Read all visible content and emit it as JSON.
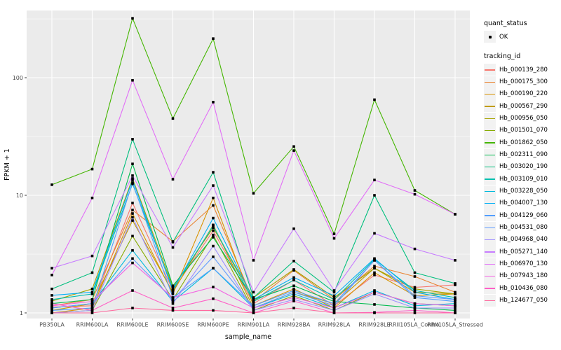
{
  "chart_data": {
    "type": "line",
    "title": "",
    "xlabel": "sample_name",
    "ylabel": "FPKM + 1",
    "y_scale": "log10",
    "y_major_ticks": [
      1,
      10,
      100
    ],
    "y_minor_gridlines": [
      3.16,
      31.6,
      316
    ],
    "ylim": [
      0.9,
      380
    ],
    "grid": true,
    "legend_position": "right",
    "point_shape": "small-black-square",
    "categories": [
      "PB350LA",
      "RRIM600LA",
      "RRIM600LE",
      "RRIM600SE",
      "RRIM600PE",
      "RRIM901LA",
      "RRIM928BA",
      "RRIM928LA",
      "RRIM928LE",
      "RRII105LA_Control",
      "RRII105LA_Stressed"
    ],
    "series": [
      {
        "name": "Hb_000139_280",
        "color": "#F8766D",
        "values": [
          1.12,
          1.15,
          8.6,
          1.55,
          5.0,
          1.2,
          1.9,
          1.15,
          2.1,
          1.65,
          1.73
        ]
      },
      {
        "name": "Hb_000175_300",
        "color": "#EA8331",
        "values": [
          1.15,
          1.3,
          7.5,
          4.05,
          8.2,
          1.25,
          2.3,
          1.3,
          2.5,
          2.04,
          1.5
        ]
      },
      {
        "name": "Hb_000190_220",
        "color": "#D89200",
        "values": [
          1.0,
          1.1,
          7.0,
          1.45,
          9.5,
          1.15,
          1.6,
          1.1,
          2.2,
          1.4,
          1.45
        ]
      },
      {
        "name": "Hb_000567_290",
        "color": "#C19C00",
        "values": [
          1.05,
          1.2,
          6.1,
          1.5,
          5.6,
          1.1,
          1.5,
          1.2,
          2.4,
          1.5,
          1.45
        ]
      },
      {
        "name": "Hb_000956_050",
        "color": "#A6A400",
        "values": [
          1.26,
          1.6,
          13.9,
          1.66,
          5.3,
          1.35,
          2.34,
          1.35,
          2.4,
          1.6,
          1.45
        ]
      },
      {
        "name": "Hb_001501_070",
        "color": "#86AB00",
        "values": [
          1.0,
          1.05,
          4.5,
          1.3,
          4.6,
          1.05,
          1.4,
          1.05,
          1.5,
          1.2,
          1.15
        ]
      },
      {
        "name": "Hb_001862_050",
        "color": "#44B600",
        "values": [
          12.3,
          16.7,
          320,
          45,
          215,
          10.4,
          26,
          4.7,
          65,
          11,
          6.9
        ]
      },
      {
        "name": "Hb_002311_090",
        "color": "#00BB4E",
        "values": [
          1.2,
          1.3,
          18.5,
          1.7,
          4.4,
          1.3,
          1.7,
          1.25,
          1.18,
          1.1,
          1.05
        ]
      },
      {
        "name": "Hb_003020_190",
        "color": "#00BF7D",
        "values": [
          1.6,
          2.2,
          30,
          4.0,
          15.7,
          1.35,
          2.76,
          1.5,
          10,
          2.2,
          1.78
        ]
      },
      {
        "name": "Hb_003109_010",
        "color": "#00C0AF",
        "values": [
          1.3,
          1.45,
          12.5,
          1.6,
          5.5,
          1.25,
          1.9,
          1.3,
          2.85,
          1.55,
          1.35
        ]
      },
      {
        "name": "Hb_003228_050",
        "color": "#00BADE",
        "values": [
          1.1,
          1.2,
          3.4,
          1.25,
          2.4,
          1.1,
          1.45,
          1.1,
          1.55,
          1.15,
          1.2
        ]
      },
      {
        "name": "Hb_004007_130",
        "color": "#00AFF6",
        "values": [
          1.41,
          1.5,
          13.5,
          1.55,
          6.4,
          1.3,
          2.0,
          1.4,
          2.9,
          1.5,
          1.3
        ]
      },
      {
        "name": "Hb_004129_060",
        "color": "#529EFF",
        "values": [
          1.05,
          1.1,
          12.8,
          1.35,
          2.4,
          1.15,
          1.55,
          1.2,
          2.8,
          1.35,
          1.25
        ]
      },
      {
        "name": "Hb_004531_080",
        "color": "#619CFF",
        "values": [
          1.1,
          1.2,
          2.9,
          1.3,
          3.0,
          1.1,
          1.5,
          1.15,
          2.8,
          1.4,
          1.3
        ]
      },
      {
        "name": "Hb_004968_040",
        "color": "#9C8DFF",
        "values": [
          1.0,
          1.05,
          6.5,
          1.2,
          3.7,
          1.05,
          1.3,
          1.05,
          1.45,
          1.1,
          1.1
        ]
      },
      {
        "name": "Hb_005271_140",
        "color": "#C77CFF",
        "values": [
          2.4,
          3.05,
          14.7,
          3.6,
          12.1,
          1.5,
          5.2,
          1.55,
          4.75,
          3.5,
          2.8
        ]
      },
      {
        "name": "Hb_006970_130",
        "color": "#E26EF7",
        "values": [
          2.1,
          9.5,
          95,
          13.7,
          62,
          2.8,
          24,
          4.3,
          13.5,
          10.2,
          6.9
        ]
      },
      {
        "name": "Hb_007943_180",
        "color": "#F364E3",
        "values": [
          1.15,
          1.25,
          2.66,
          1.35,
          1.66,
          1.1,
          1.35,
          1.1,
          1.5,
          1.2,
          1.15
        ]
      },
      {
        "name": "Hb_010436_080",
        "color": "#FF61C7",
        "values": [
          1.2,
          1.05,
          1.55,
          1.1,
          1.32,
          1.0,
          1.26,
          1.0,
          1.01,
          1.05,
          1.0
        ]
      },
      {
        "name": "Hb_124677_050",
        "color": "#FF689E",
        "values": [
          1.0,
          1.0,
          1.1,
          1.05,
          1.05,
          1.0,
          1.1,
          1.0,
          1.0,
          1.0,
          1.0
        ]
      }
    ]
  },
  "legend": {
    "quant_status": {
      "title": "quant_status",
      "items": [
        {
          "label": "OK",
          "symbol": "point"
        }
      ]
    },
    "tracking_id": {
      "title": "tracking_id"
    }
  },
  "theme": {
    "panel_bg": "#EBEBEB",
    "grid_color": "#FFFFFF",
    "axis_text_color": "#4D4D4D",
    "text_color": "#000000",
    "legend_key_bg": "#F2F2F2",
    "point_color": "#000000",
    "tick_color": "#333333"
  }
}
